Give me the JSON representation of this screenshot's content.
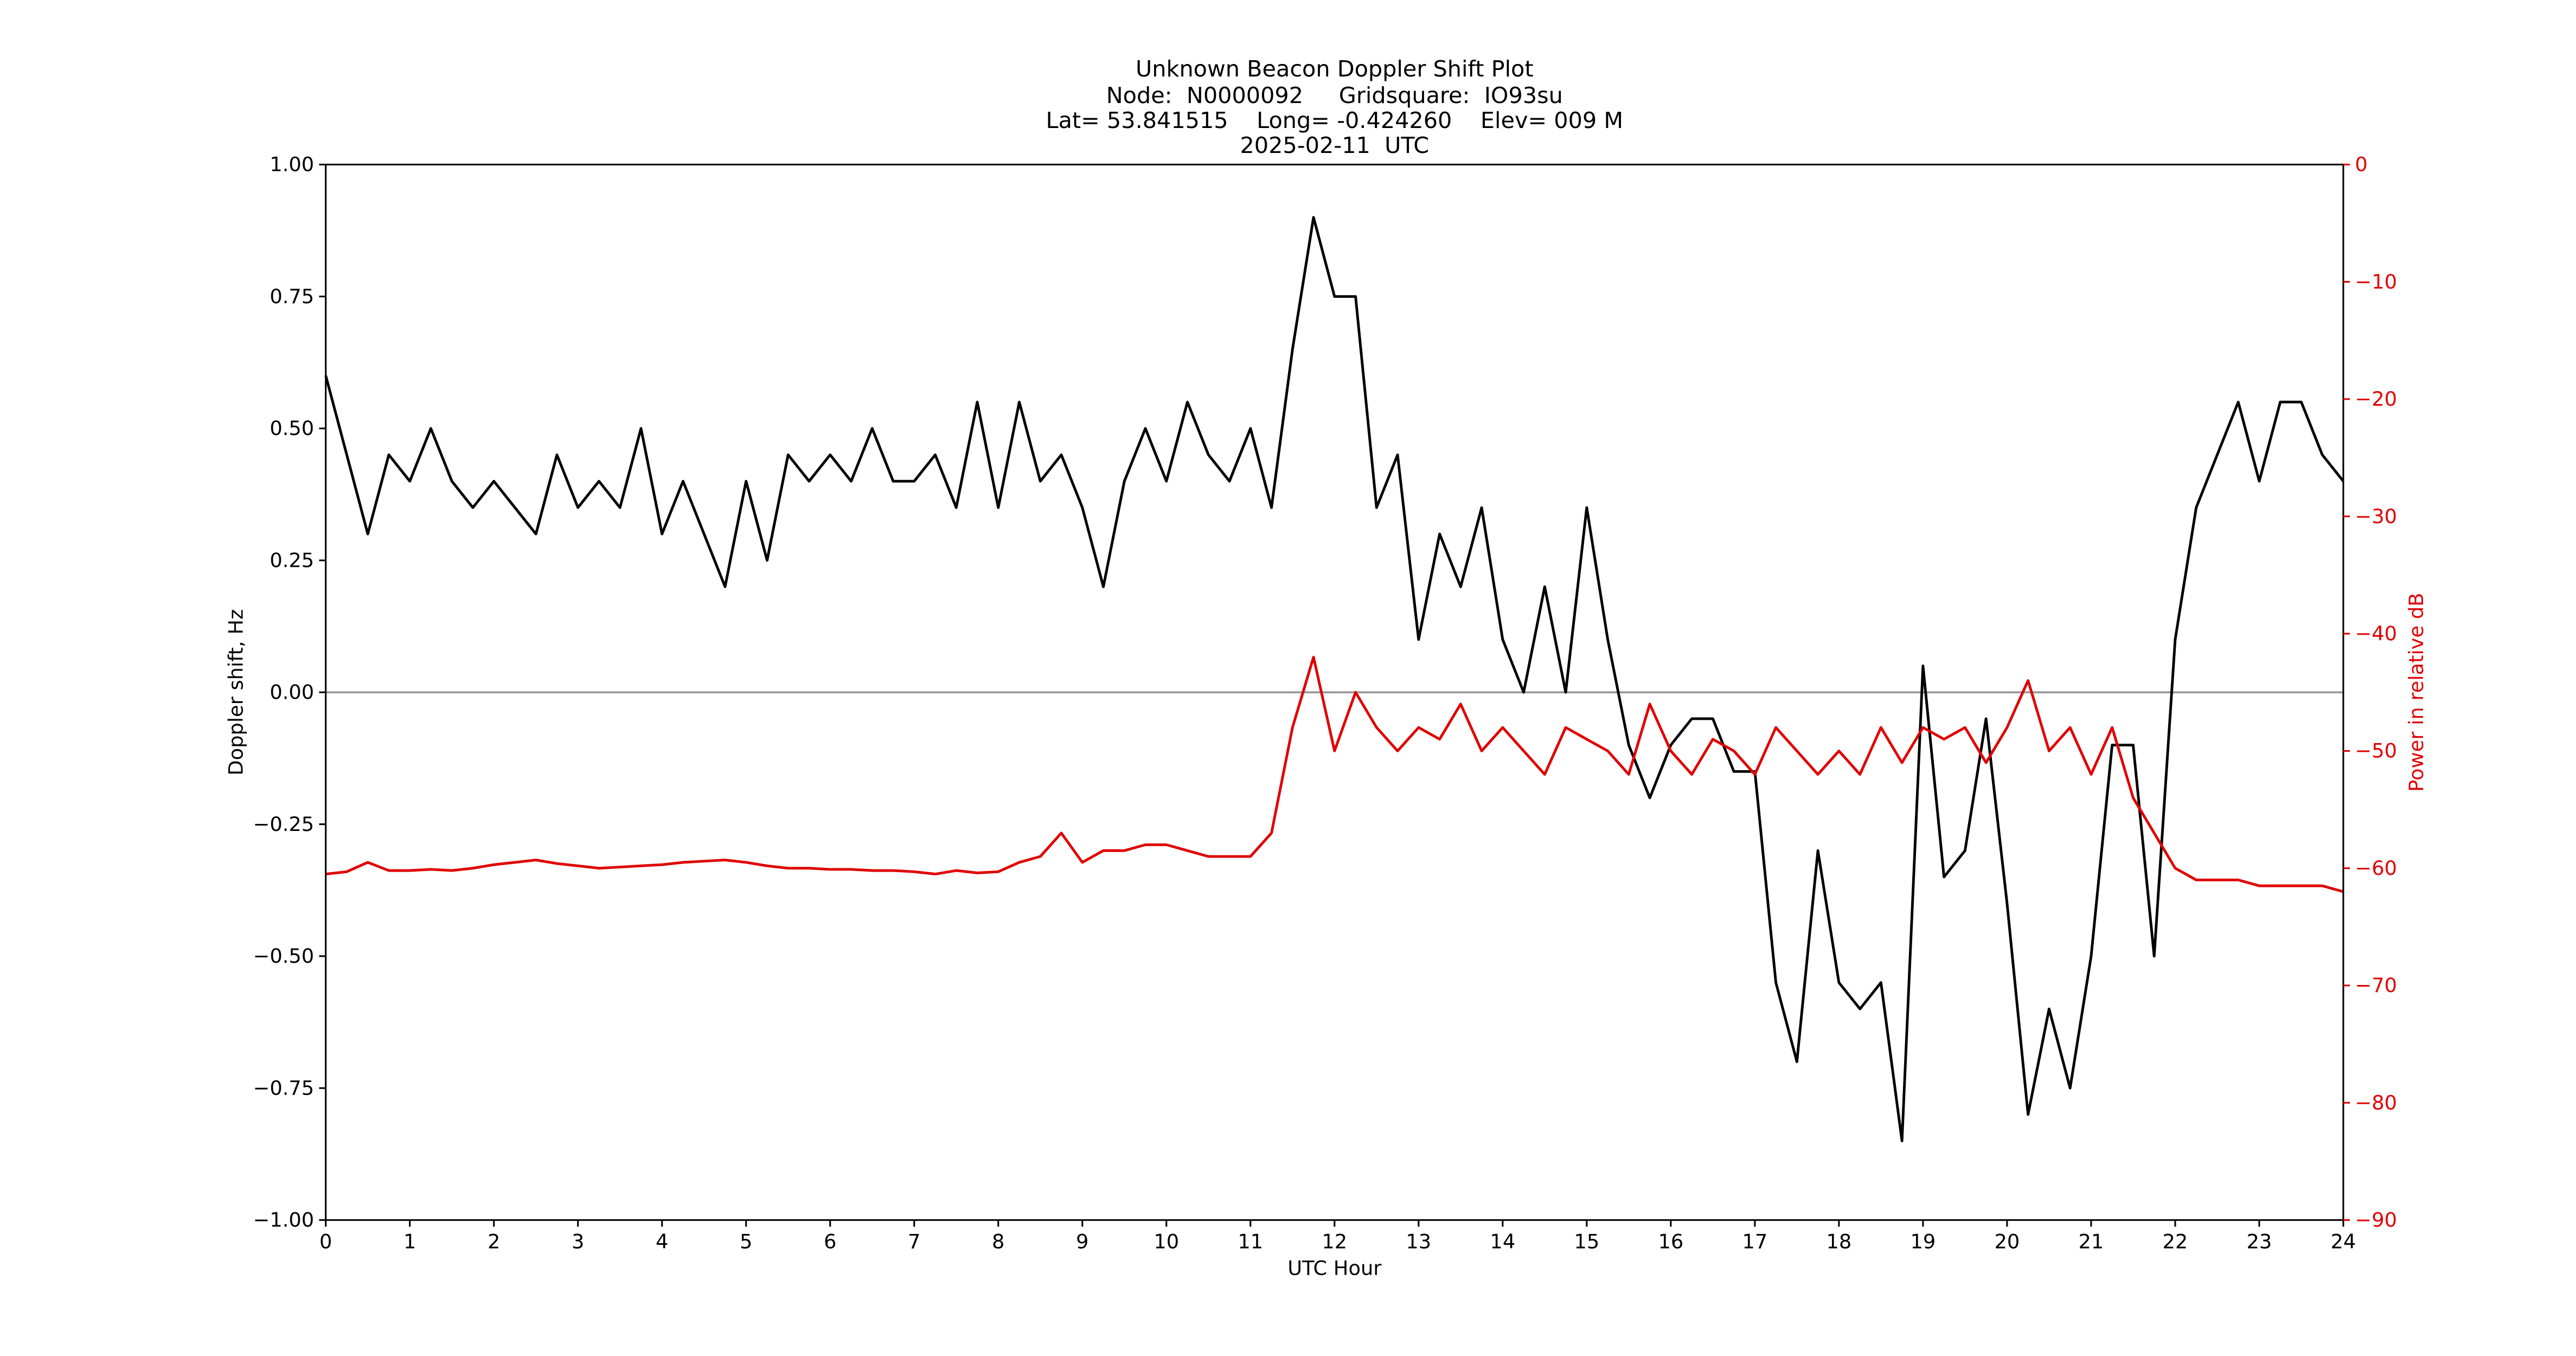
{
  "chart_data": {
    "type": "line",
    "title": "Unknown Beacon Doppler Shift Plot",
    "subtitle": [
      "Node:  N0000092     Gridsquare:  IO93su",
      "Lat= 53.841515    Long= -0.424260    Elev= 009 M",
      "2025-02-11  UTC"
    ],
    "xlabel": "UTC Hour",
    "ylabel": "Doppler shift, Hz",
    "y2label": "Power in relative dB",
    "y2color": "#e00000",
    "xlim": [
      0,
      24
    ],
    "xticks": [
      0,
      1,
      2,
      3,
      4,
      5,
      6,
      7,
      8,
      9,
      10,
      11,
      12,
      13,
      14,
      15,
      16,
      17,
      18,
      19,
      20,
      21,
      22,
      23,
      24
    ],
    "ylim": [
      -1,
      1
    ],
    "yticks": [
      {
        "value": -1,
        "label": "−1.00"
      },
      {
        "value": -0.75,
        "label": "−0.75"
      },
      {
        "value": -0.5,
        "label": "−0.50"
      },
      {
        "value": -0.25,
        "label": "−0.25"
      },
      {
        "value": 0,
        "label": "0.00"
      },
      {
        "value": 0.25,
        "label": "0.25"
      },
      {
        "value": 0.5,
        "label": "0.50"
      },
      {
        "value": 0.75,
        "label": "0.75"
      },
      {
        "value": 1,
        "label": "1.00"
      }
    ],
    "y2lim": [
      -90,
      0
    ],
    "y2ticks": [
      {
        "value": -90,
        "label": "−90"
      },
      {
        "value": -80,
        "label": "−80"
      },
      {
        "value": -70,
        "label": "−70"
      },
      {
        "value": -60,
        "label": "−60"
      },
      {
        "value": -50,
        "label": "−50"
      },
      {
        "value": -40,
        "label": "−40"
      },
      {
        "value": -30,
        "label": "−30"
      },
      {
        "value": -20,
        "label": "−20"
      },
      {
        "value": -10,
        "label": "−10"
      },
      0
    ],
    "hlines": [
      0
    ],
    "x": [
      0,
      0.25,
      0.5,
      0.75,
      1,
      1.25,
      1.5,
      1.75,
      2,
      2.25,
      2.5,
      2.75,
      3,
      3.25,
      3.5,
      3.75,
      4,
      4.25,
      4.5,
      4.75,
      5,
      5.25,
      5.5,
      5.75,
      6,
      6.25,
      6.5,
      6.75,
      7,
      7.25,
      7.5,
      7.75,
      8,
      8.25,
      8.5,
      8.75,
      9,
      9.25,
      9.5,
      9.75,
      10,
      10.25,
      10.5,
      10.75,
      11,
      11.25,
      11.5,
      11.75,
      12,
      12.25,
      12.5,
      12.75,
      13,
      13.25,
      13.5,
      13.75,
      14,
      14.25,
      14.5,
      14.75,
      15,
      15.25,
      15.5,
      15.75,
      16,
      16.25,
      16.5,
      16.75,
      17,
      17.25,
      17.5,
      17.75,
      18,
      18.25,
      18.5,
      18.75,
      19,
      19.25,
      19.5,
      19.75,
      20,
      20.25,
      20.5,
      20.75,
      21,
      21.25,
      21.5,
      21.75,
      22,
      22.25,
      22.5,
      22.75,
      23,
      23.25,
      23.5,
      23.75,
      24
    ],
    "series": [
      {
        "color": "#000000",
        "axis": "y",
        "values": [
          0.6,
          0.45,
          0.3,
          0.45,
          0.4,
          0.5,
          0.4,
          0.35,
          0.4,
          0.35,
          0.3,
          0.45,
          0.35,
          0.4,
          0.35,
          0.5,
          0.3,
          0.4,
          0.3,
          0.2,
          0.4,
          0.25,
          0.45,
          0.4,
          0.45,
          0.4,
          0.5,
          0.4,
          0.4,
          0.45,
          0.35,
          0.55,
          0.35,
          0.55,
          0.4,
          0.45,
          0.35,
          0.2,
          0.4,
          0.5,
          0.4,
          0.55,
          0.45,
          0.4,
          0.5,
          0.35,
          0.65,
          0.9,
          0.75,
          0.75,
          0.35,
          0.45,
          0.1,
          0.3,
          0.2,
          0.35,
          0.1,
          0,
          0.2,
          0,
          0.35,
          0.1,
          -0.1,
          -0.2,
          -0.1,
          -0.05,
          -0.05,
          -0.15,
          -0.15,
          -0.55,
          -0.7,
          -0.3,
          -0.55,
          -0.6,
          -0.55,
          -0.85,
          0.05,
          -0.35,
          -0.3,
          -0.05,
          -0.4,
          -0.8,
          -0.6,
          -0.75,
          -0.5,
          -0.1,
          -0.1,
          -0.5,
          0.1,
          0.35,
          0.45,
          0.55,
          0.4,
          0.55,
          0.55,
          0.45,
          0.4
        ]
      },
      {
        "color": "#e00000",
        "axis": "y2",
        "values": [
          -60.5,
          -60.3,
          -59.5,
          -60.2,
          -60.2,
          -60.1,
          -60.2,
          -60,
          -59.7,
          -59.5,
          -59.3,
          -59.6,
          -59.8,
          -60,
          -59.9,
          -59.8,
          -59.7,
          -59.5,
          -59.4,
          -59.3,
          -59.5,
          -59.8,
          -60,
          -60,
          -60.1,
          -60.1,
          -60.2,
          -60.2,
          -60.3,
          -60.5,
          -60.2,
          -60.4,
          -60.3,
          -59.5,
          -59,
          -57,
          -59.5,
          -58.5,
          -58.5,
          -58,
          -58,
          -58.5,
          -59,
          -59,
          -59,
          -57,
          -48,
          -42,
          -50,
          -45,
          -48,
          -50,
          -48,
          -49,
          -46,
          -50,
          -48,
          -50,
          -52,
          -48,
          -49,
          -50,
          -52,
          -46,
          -50,
          -52,
          -49,
          -50,
          -52,
          -48,
          -50,
          -52,
          -50,
          -52,
          -48,
          -51,
          -48,
          -49,
          -48,
          -51,
          -48,
          -44,
          -50,
          -48,
          -52,
          -48,
          -54,
          -57,
          -60,
          -61,
          -61,
          -61,
          -61.5,
          -61.5,
          -61.5,
          -61.5,
          -62
        ]
      }
    ]
  }
}
